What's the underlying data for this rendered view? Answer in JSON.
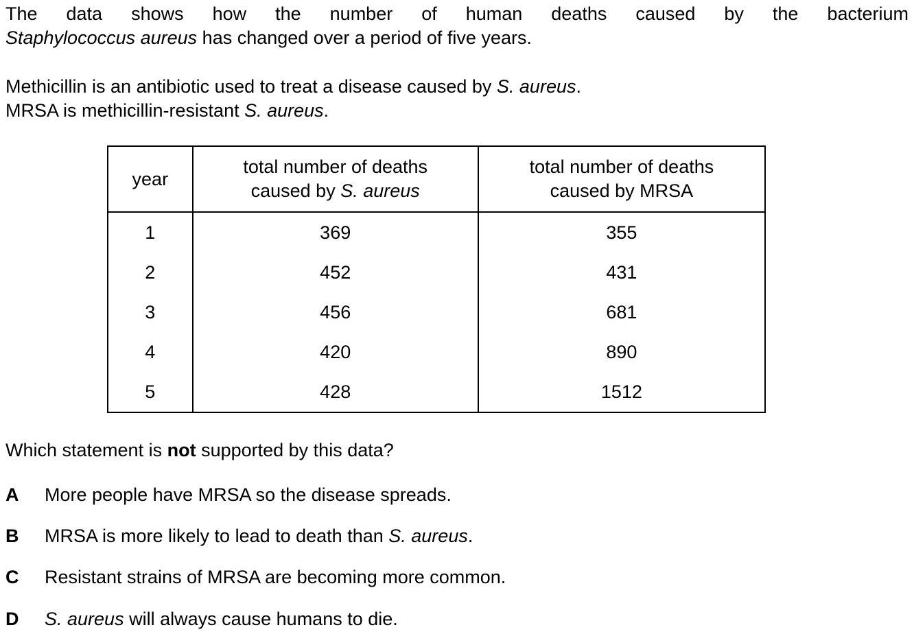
{
  "intro": {
    "line1_part1": "The data shows how the number of human deaths caused by the bacterium",
    "line2_italic": "Staphylococcus aureus",
    "line2_rest": " has changed over a period of five years."
  },
  "context": {
    "line1_part1": "Methicillin is an antibiotic used to treat a disease caused by ",
    "line1_italic": "S. aureus",
    "line1_end": ".",
    "line2_part1": "MRSA is methicillin-resistant ",
    "line2_italic": "S. aureus",
    "line2_end": "."
  },
  "table": {
    "headers": {
      "year": "year",
      "sa_line1": "total number of deaths",
      "sa_line2_prefix": "caused by ",
      "sa_line2_italic": "S. aureus",
      "mrsa_line1": "total number of deaths",
      "mrsa_line2": "caused by MRSA"
    },
    "rows": [
      {
        "year": "1",
        "sa": "369",
        "mrsa": "355"
      },
      {
        "year": "2",
        "sa": "452",
        "mrsa": "431"
      },
      {
        "year": "3",
        "sa": "456",
        "mrsa": "681"
      },
      {
        "year": "4",
        "sa": "420",
        "mrsa": "890"
      },
      {
        "year": "5",
        "sa": "428",
        "mrsa": "1512"
      }
    ]
  },
  "question": {
    "prefix": "Which statement is ",
    "bold": "not",
    "suffix": " supported by this data?"
  },
  "options": [
    {
      "letter": "A",
      "text_before": "More people have MRSA so the disease spreads.",
      "italic": "",
      "text_after": ""
    },
    {
      "letter": "B",
      "text_before": "MRSA is more likely to lead to death than ",
      "italic": "S. aureus",
      "text_after": "."
    },
    {
      "letter": "C",
      "text_before": "Resistant strains of MRSA are becoming more common.",
      "italic": "",
      "text_after": ""
    },
    {
      "letter": "D",
      "text_before": "",
      "italic": "S. aureus",
      "text_after": " will always cause humans to die."
    }
  ]
}
